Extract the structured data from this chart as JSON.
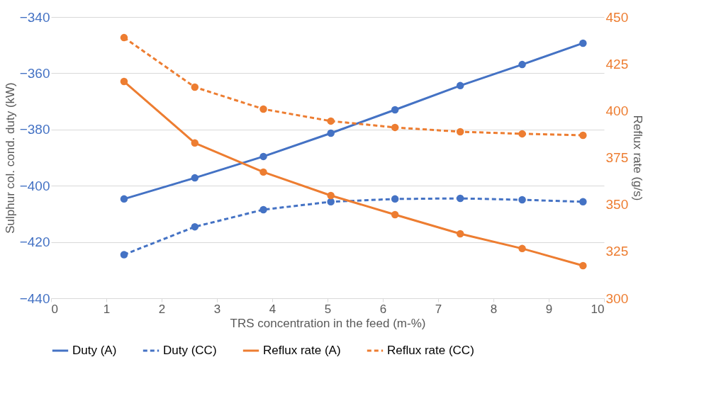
{
  "chart_data": {
    "type": "line",
    "xlabel": "TRS concentration in the feed (m-%)",
    "ylabel": "Sulphur col. cond. duty (kW)",
    "y2label": "Reflux rate (g/s)",
    "x": [
      1.32,
      2.6,
      3.84,
      5.06,
      6.22,
      7.4,
      8.52,
      9.62
    ],
    "series": [
      {
        "name": "Duty (A)",
        "color": "#4472c4",
        "line_style": "solid",
        "values": [
          -404.7,
          -397.2,
          -389.6,
          -381.3,
          -373.0,
          -364.4,
          -356.9,
          -349.3
        ]
      },
      {
        "name": "Duty (CC)",
        "color": "#4472c4",
        "line_style": "dashed",
        "values": [
          -424.5,
          -414.6,
          -408.5,
          -405.7,
          -404.7,
          -404.5,
          -405.0,
          -405.7
        ]
      },
      {
        "name": "Reflux rate (A)",
        "color": "#ed7d31",
        "line_style": "solid",
        "axis": "y2",
        "values": [
          415.6,
          382.8,
          367.3,
          354.8,
          344.6,
          334.4,
          326.5,
          317.4
        ]
      },
      {
        "name": "Reflux rate (CC)",
        "color": "#ed7d31",
        "line_style": "dashed",
        "axis": "y2",
        "values": [
          439.0,
          412.6,
          400.9,
          394.5,
          391.1,
          388.8,
          387.7,
          386.9
        ]
      }
    ],
    "xlim": [
      0,
      10
    ],
    "xticks": [
      0,
      1,
      2,
      3,
      4,
      5,
      6,
      7,
      8,
      9,
      10
    ],
    "ylim": [
      -440,
      -340
    ],
    "yticks": [
      -440,
      -420,
      -400,
      -380,
      -360,
      -340
    ],
    "y2lim": [
      300,
      450
    ],
    "y2ticks": [
      300,
      325,
      350,
      375,
      400,
      425,
      450
    ],
    "grid": "y",
    "legend": "bottom",
    "marker": "circle"
  }
}
